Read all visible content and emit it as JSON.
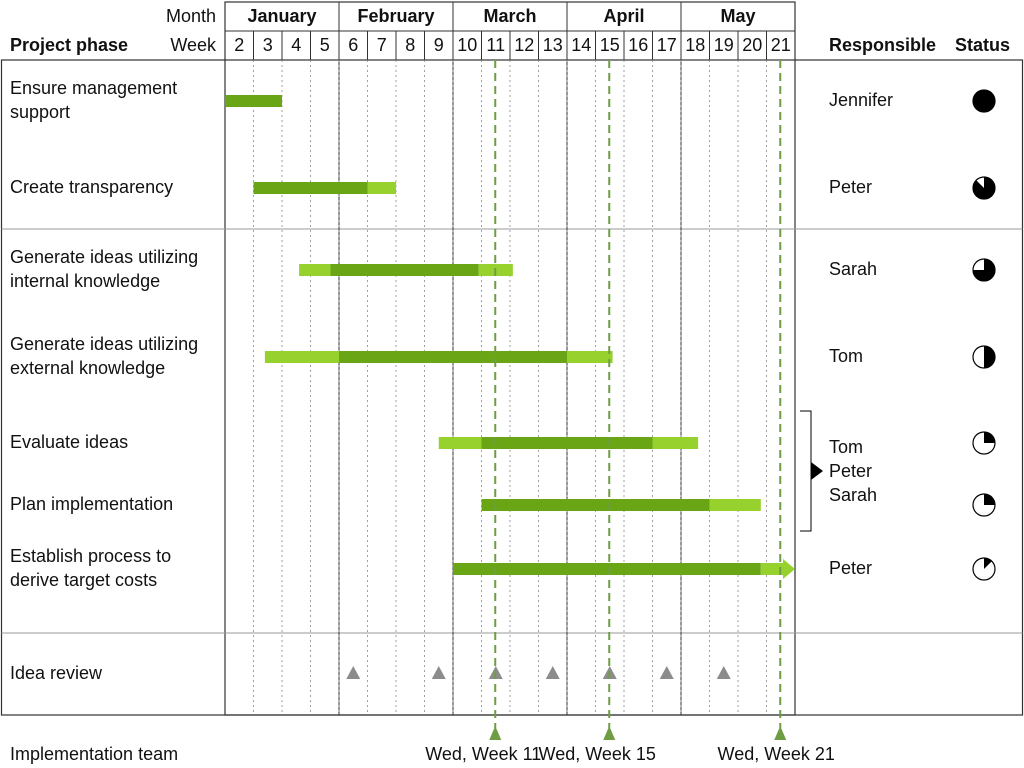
{
  "header": {
    "month_label": "Month",
    "week_label": "Week",
    "phase_label": "Project phase",
    "responsible_label": "Responsible",
    "status_label": "Status"
  },
  "months": [
    {
      "name": "January",
      "start_week": 2,
      "end_week": 5
    },
    {
      "name": "February",
      "start_week": 6,
      "end_week": 9
    },
    {
      "name": "March",
      "start_week": 10,
      "end_week": 13
    },
    {
      "name": "April",
      "start_week": 14,
      "end_week": 17
    },
    {
      "name": "May",
      "start_week": 18,
      "end_week": 21
    }
  ],
  "weeks": [
    "2",
    "3",
    "4",
    "5",
    "6",
    "7",
    "8",
    "9",
    "10",
    "11",
    "12",
    "13",
    "14",
    "15",
    "16",
    "17",
    "18",
    "19",
    "20",
    "21"
  ],
  "groups": [
    {
      "name": "group-1",
      "tasks": [
        {
          "label_lines": [
            "Ensure management",
            "support"
          ],
          "responsible": "Jennifer",
          "status": 1.0,
          "segments": [
            {
              "start": 2.0,
              "end": 4.0,
              "tone": "dark"
            }
          ]
        },
        {
          "label_lines": [
            "Create transparency"
          ],
          "responsible": "Peter",
          "status": 0.875,
          "segments": [
            {
              "start": 3.0,
              "end": 7.0,
              "tone": "dark"
            },
            {
              "start": 7.0,
              "end": 8.0,
              "tone": "light"
            }
          ]
        }
      ]
    },
    {
      "name": "group-2",
      "tasks": [
        {
          "label_lines": [
            "Generate ideas utilizing",
            "internal knowledge"
          ],
          "responsible": "Sarah",
          "status": 0.75,
          "segments": [
            {
              "start": 4.6,
              "end": 5.7,
              "tone": "light"
            },
            {
              "start": 5.7,
              "end": 10.9,
              "tone": "dark"
            },
            {
              "start": 10.9,
              "end": 12.1,
              "tone": "light"
            }
          ]
        },
        {
          "label_lines": [
            "Generate ideas utilizing",
            "external knowledge"
          ],
          "responsible": "Tom",
          "status": 0.5,
          "segments": [
            {
              "start": 3.4,
              "end": 6.0,
              "tone": "light"
            },
            {
              "start": 6.0,
              "end": 14.0,
              "tone": "dark"
            },
            {
              "start": 14.0,
              "end": 15.6,
              "tone": "light"
            }
          ]
        },
        {
          "label_lines": [
            "Evaluate ideas"
          ],
          "responsible": "",
          "status": 0.25,
          "segments": [
            {
              "start": 9.5,
              "end": 11.0,
              "tone": "light"
            },
            {
              "start": 11.0,
              "end": 17.0,
              "tone": "dark"
            },
            {
              "start": 17.0,
              "end": 18.6,
              "tone": "light"
            }
          ]
        },
        {
          "label_lines": [
            "Plan implementation"
          ],
          "responsible": "",
          "status": 0.25,
          "segments": [
            {
              "start": 11.0,
              "end": 19.0,
              "tone": "dark"
            },
            {
              "start": 19.0,
              "end": 20.8,
              "tone": "light"
            }
          ]
        },
        {
          "label_lines": [
            "Establish process to",
            "derive target costs"
          ],
          "responsible": "Peter",
          "status": 0.125,
          "arrow": true,
          "segments": [
            {
              "start": 10.0,
              "end": 20.8,
              "tone": "dark"
            },
            {
              "start": 20.8,
              "end": 22.0,
              "tone": "light"
            }
          ]
        }
      ]
    },
    {
      "name": "group-3",
      "tasks": [
        {
          "label_lines": [
            "Idea review"
          ],
          "responsible": "",
          "status": null,
          "review_weeks": [
            6,
            9,
            11,
            13,
            15,
            17,
            19
          ]
        }
      ]
    }
  ],
  "shared_responsible": [
    "Tom",
    "Peter",
    "Sarah"
  ],
  "milestones": [
    {
      "week": 11,
      "label": "Wed, Week 11"
    },
    {
      "week": 15,
      "label": "Wed, Week 15"
    },
    {
      "week": 21,
      "label": "Wed, Week 21"
    }
  ],
  "footer": {
    "label": "Implementation team"
  },
  "colors": {
    "dark_bar": "#6aa516",
    "light_bar": "#97d12e",
    "milestone": "#6e9d43",
    "review": "#8c8c8c",
    "grid": "#8a8a8a",
    "frame": "#333333"
  }
}
